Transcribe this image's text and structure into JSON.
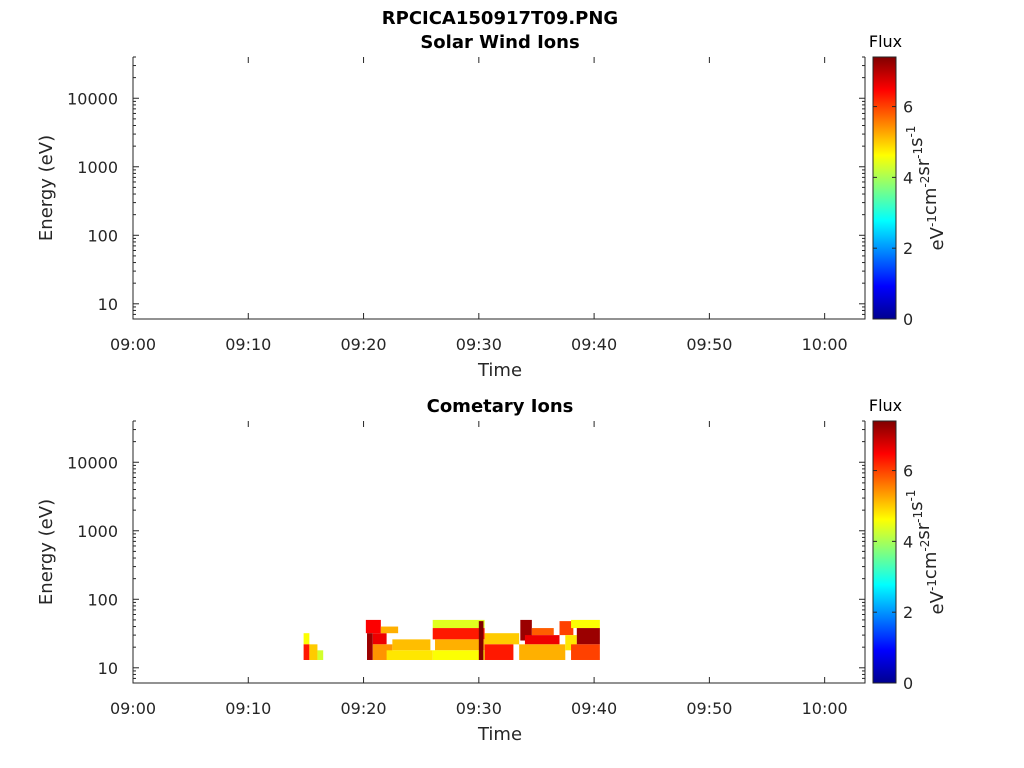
{
  "figure": {
    "title": "RPCICA150917T09.PNG"
  },
  "colorbar": {
    "title": "Flux",
    "label_parts": [
      "eV",
      "-1",
      "cm",
      "-2",
      "sr",
      "-1",
      "s",
      "-1"
    ],
    "ticks": [
      "0",
      "2",
      "4",
      "6"
    ],
    "range": [
      0,
      7.4
    ],
    "colormap": "jet"
  },
  "chart_data": [
    {
      "type": "heatmap",
      "title": "Solar Wind Ions",
      "xlabel": "Time",
      "ylabel": "Energy (eV)",
      "x_ticks": [
        "09:00",
        "09:10",
        "09:20",
        "09:30",
        "09:40",
        "09:50",
        "10:00"
      ],
      "y_ticks": [
        "10",
        "100",
        "1000",
        "10000"
      ],
      "y_scale": "log",
      "ylim": [
        6,
        40000
      ],
      "xlim_minutes": [
        0,
        63.5
      ],
      "patches": []
    },
    {
      "type": "heatmap",
      "title": "Cometary Ions",
      "xlabel": "Time",
      "ylabel": "Energy (eV)",
      "x_ticks": [
        "09:00",
        "09:10",
        "09:20",
        "09:30",
        "09:40",
        "09:50",
        "10:00"
      ],
      "y_ticks": [
        "10",
        "100",
        "1000",
        "10000"
      ],
      "y_scale": "log",
      "ylim": [
        6,
        40000
      ],
      "xlim_minutes": [
        0,
        63.5
      ],
      "patches": [
        {
          "t0": 14.8,
          "t1": 15.3,
          "e0": 22,
          "e1": 32,
          "v": 4.6
        },
        {
          "t0": 14.8,
          "t1": 15.3,
          "e0": 13,
          "e1": 22,
          "v": 6.3
        },
        {
          "t0": 15.3,
          "t1": 16.0,
          "e0": 13,
          "e1": 22,
          "v": 5.0
        },
        {
          "t0": 16.0,
          "t1": 16.5,
          "e0": 13,
          "e1": 18,
          "v": 4.3
        },
        {
          "t0": 20.2,
          "t1": 21.5,
          "e0": 32,
          "e1": 50,
          "v": 6.5
        },
        {
          "t0": 20.3,
          "t1": 20.8,
          "e0": 13,
          "e1": 32,
          "v": 7.2
        },
        {
          "t0": 20.8,
          "t1": 22.0,
          "e0": 22,
          "e1": 32,
          "v": 6.6
        },
        {
          "t0": 21.5,
          "t1": 23.0,
          "e0": 32,
          "e1": 40,
          "v": 5.2
        },
        {
          "t0": 20.8,
          "t1": 22.5,
          "e0": 13,
          "e1": 22,
          "v": 5.4
        },
        {
          "t0": 22.5,
          "t1": 25.8,
          "e0": 18,
          "e1": 26,
          "v": 5.1
        },
        {
          "t0": 22.0,
          "t1": 26.0,
          "e0": 13,
          "e1": 18,
          "v": 4.8
        },
        {
          "t0": 26.0,
          "t1": 30.5,
          "e0": 38,
          "e1": 50,
          "v": 4.4
        },
        {
          "t0": 26.0,
          "t1": 30.5,
          "e0": 26,
          "e1": 38,
          "v": 6.3
        },
        {
          "t0": 26.2,
          "t1": 30.5,
          "e0": 18,
          "e1": 26,
          "v": 5.2
        },
        {
          "t0": 26.0,
          "t1": 30.5,
          "e0": 13,
          "e1": 18,
          "v": 4.6
        },
        {
          "t0": 30.0,
          "t1": 30.4,
          "e0": 13,
          "e1": 48,
          "v": 7.4
        },
        {
          "t0": 30.5,
          "t1": 33.5,
          "e0": 22,
          "e1": 32,
          "v": 5.0
        },
        {
          "t0": 30.5,
          "t1": 33.0,
          "e0": 13,
          "e1": 22,
          "v": 6.3
        },
        {
          "t0": 33.6,
          "t1": 34.6,
          "e0": 25,
          "e1": 50,
          "v": 7.2
        },
        {
          "t0": 34.6,
          "t1": 36.5,
          "e0": 30,
          "e1": 38,
          "v": 5.8
        },
        {
          "t0": 34.0,
          "t1": 37.0,
          "e0": 22,
          "e1": 30,
          "v": 6.6
        },
        {
          "t0": 33.5,
          "t1": 37.5,
          "e0": 13,
          "e1": 22,
          "v": 5.2
        },
        {
          "t0": 37.0,
          "t1": 38.2,
          "e0": 30,
          "e1": 48,
          "v": 6.0
        },
        {
          "t0": 37.5,
          "t1": 38.5,
          "e0": 18,
          "e1": 30,
          "v": 4.8
        },
        {
          "t0": 38.0,
          "t1": 40.5,
          "e0": 38,
          "e1": 50,
          "v": 4.6
        },
        {
          "t0": 38.5,
          "t1": 40.5,
          "e0": 22,
          "e1": 38,
          "v": 7.2
        },
        {
          "t0": 38.0,
          "t1": 40.5,
          "e0": 13,
          "e1": 22,
          "v": 6.0
        }
      ]
    }
  ]
}
